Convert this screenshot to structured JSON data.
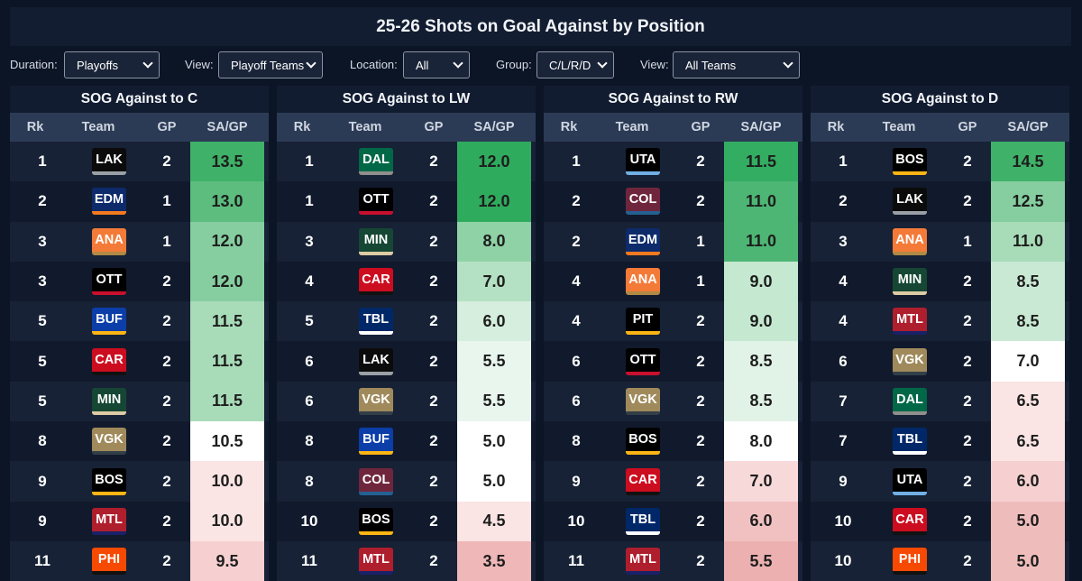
{
  "page": {
    "title": "25-26 Shots on Goal Against by Position"
  },
  "filters": [
    {
      "label": "Duration:",
      "value": "Playoffs"
    },
    {
      "label": "View:",
      "value": "Playoff Teams"
    },
    {
      "label": "Location:",
      "value": "All"
    },
    {
      "label": "Group:",
      "value": "C/L/R/D"
    },
    {
      "label": "View:",
      "value": "All Teams"
    }
  ],
  "columns": {
    "rk": "Rk",
    "team": "Team",
    "gp": "GP",
    "sa": "SA/GP"
  },
  "team_colors": {
    "LAK": {
      "bg": "#0b0b0b",
      "stripe": "#9aa0a6"
    },
    "EDM": {
      "bg": "#0d2a6b",
      "stripe": "#f47a20"
    },
    "ANA": {
      "bg": "#f47a38",
      "stripe": "#b08a45"
    },
    "OTT": {
      "bg": "#000000",
      "stripe": "#c8102e"
    },
    "BUF": {
      "bg": "#0b3ea8",
      "stripe": "#fcb514"
    },
    "CAR": {
      "bg": "#cc0d1f",
      "stripe": "#111111"
    },
    "MIN": {
      "bg": "#154734",
      "stripe": "#ddcba4"
    },
    "VGK": {
      "bg": "#a08a5c",
      "stripe": "#333f48"
    },
    "BOS": {
      "bg": "#000000",
      "stripe": "#fcb514"
    },
    "MTL": {
      "bg": "#af1e2d",
      "stripe": "#192168"
    },
    "PHI": {
      "bg": "#f74902",
      "stripe": "#111111"
    },
    "DAL": {
      "bg": "#006847",
      "stripe": "#8f8f8c"
    },
    "TBL": {
      "bg": "#002868",
      "stripe": "#ffffff"
    },
    "COL": {
      "bg": "#6f263d",
      "stripe": "#236192"
    },
    "UTA": {
      "bg": "#000000",
      "stripe": "#71afe5"
    },
    "PIT": {
      "bg": "#000000",
      "stripe": "#fcb514"
    }
  },
  "panels": [
    {
      "title": "SOG Against to C",
      "rows": [
        {
          "rk": "1",
          "team": "LAK",
          "gp": "2",
          "sa": "13.5"
        },
        {
          "rk": "2",
          "team": "EDM",
          "gp": "1",
          "sa": "13.0"
        },
        {
          "rk": "3",
          "team": "ANA",
          "gp": "1",
          "sa": "12.0"
        },
        {
          "rk": "3",
          "team": "OTT",
          "gp": "2",
          "sa": "12.0"
        },
        {
          "rk": "5",
          "team": "BUF",
          "gp": "2",
          "sa": "11.5"
        },
        {
          "rk": "5",
          "team": "CAR",
          "gp": "2",
          "sa": "11.5"
        },
        {
          "rk": "5",
          "team": "MIN",
          "gp": "2",
          "sa": "11.5"
        },
        {
          "rk": "8",
          "team": "VGK",
          "gp": "2",
          "sa": "10.5"
        },
        {
          "rk": "9",
          "team": "BOS",
          "gp": "2",
          "sa": "10.0"
        },
        {
          "rk": "9",
          "team": "MTL",
          "gp": "2",
          "sa": "10.0"
        },
        {
          "rk": "11",
          "team": "PHI",
          "gp": "2",
          "sa": "9.5"
        }
      ]
    },
    {
      "title": "SOG Against to LW",
      "rows": [
        {
          "rk": "1",
          "team": "DAL",
          "gp": "2",
          "sa": "12.0"
        },
        {
          "rk": "1",
          "team": "OTT",
          "gp": "2",
          "sa": "12.0"
        },
        {
          "rk": "3",
          "team": "MIN",
          "gp": "2",
          "sa": "8.0"
        },
        {
          "rk": "4",
          "team": "CAR",
          "gp": "2",
          "sa": "7.0"
        },
        {
          "rk": "5",
          "team": "TBL",
          "gp": "2",
          "sa": "6.0"
        },
        {
          "rk": "6",
          "team": "LAK",
          "gp": "2",
          "sa": "5.5"
        },
        {
          "rk": "6",
          "team": "VGK",
          "gp": "2",
          "sa": "5.5"
        },
        {
          "rk": "8",
          "team": "BUF",
          "gp": "2",
          "sa": "5.0"
        },
        {
          "rk": "8",
          "team": "COL",
          "gp": "2",
          "sa": "5.0"
        },
        {
          "rk": "10",
          "team": "BOS",
          "gp": "2",
          "sa": "4.5"
        },
        {
          "rk": "11",
          "team": "MTL",
          "gp": "2",
          "sa": "3.5"
        }
      ]
    },
    {
      "title": "SOG Against to RW",
      "rows": [
        {
          "rk": "1",
          "team": "UTA",
          "gp": "2",
          "sa": "11.5"
        },
        {
          "rk": "2",
          "team": "COL",
          "gp": "2",
          "sa": "11.0"
        },
        {
          "rk": "2",
          "team": "EDM",
          "gp": "1",
          "sa": "11.0"
        },
        {
          "rk": "4",
          "team": "ANA",
          "gp": "1",
          "sa": "9.0"
        },
        {
          "rk": "4",
          "team": "PIT",
          "gp": "2",
          "sa": "9.0"
        },
        {
          "rk": "6",
          "team": "OTT",
          "gp": "2",
          "sa": "8.5"
        },
        {
          "rk": "6",
          "team": "VGK",
          "gp": "2",
          "sa": "8.5"
        },
        {
          "rk": "8",
          "team": "BOS",
          "gp": "2",
          "sa": "8.0"
        },
        {
          "rk": "9",
          "team": "CAR",
          "gp": "2",
          "sa": "7.0"
        },
        {
          "rk": "10",
          "team": "TBL",
          "gp": "2",
          "sa": "6.0"
        },
        {
          "rk": "11",
          "team": "MTL",
          "gp": "2",
          "sa": "5.5"
        }
      ]
    },
    {
      "title": "SOG Against to D",
      "rows": [
        {
          "rk": "1",
          "team": "BOS",
          "gp": "2",
          "sa": "14.5"
        },
        {
          "rk": "2",
          "team": "LAK",
          "gp": "2",
          "sa": "12.5"
        },
        {
          "rk": "3",
          "team": "ANA",
          "gp": "1",
          "sa": "11.0"
        },
        {
          "rk": "4",
          "team": "MIN",
          "gp": "2",
          "sa": "8.5"
        },
        {
          "rk": "4",
          "team": "MTL",
          "gp": "2",
          "sa": "8.5"
        },
        {
          "rk": "6",
          "team": "VGK",
          "gp": "2",
          "sa": "7.0"
        },
        {
          "rk": "7",
          "team": "DAL",
          "gp": "2",
          "sa": "6.5"
        },
        {
          "rk": "7",
          "team": "TBL",
          "gp": "2",
          "sa": "6.5"
        },
        {
          "rk": "9",
          "team": "UTA",
          "gp": "2",
          "sa": "6.0"
        },
        {
          "rk": "10",
          "team": "CAR",
          "gp": "2",
          "sa": "5.0"
        },
        {
          "rk": "10",
          "team": "PHI",
          "gp": "2",
          "sa": "5.0"
        }
      ]
    }
  ],
  "heat_colors": {
    "panel0": [
      "#3fb168",
      "#5cbd7e",
      "#86cea0",
      "#86cea0",
      "#a8dcb9",
      "#a8dcb9",
      "#a8dcb9",
      "#ffffff",
      "#fbe4e4",
      "#fbe4e4",
      "#f6d0d0"
    ],
    "panel1": [
      "#2fab5e",
      "#2fab5e",
      "#8fd2a6",
      "#b4e1c3",
      "#d5eedd",
      "#e9f6ee",
      "#e9f6ee",
      "#ffffff",
      "#ffffff",
      "#fbe4e4",
      "#efb7b7"
    ],
    "panel2": [
      "#33ad62",
      "#4db674",
      "#4db674",
      "#c5e8d1",
      "#c5e8d1",
      "#e1f3e7",
      "#e1f3e7",
      "#ffffff",
      "#f8d9d9",
      "#f1c1c1",
      "#ecb0b0"
    ],
    "panel3": [
      "#3fb168",
      "#86cea0",
      "#a8dcb9",
      "#c9e9d4",
      "#c9e9d4",
      "#ffffff",
      "#fbe4e4",
      "#fbe4e4",
      "#f6d0d0",
      "#efbcbc",
      "#efbcbc"
    ]
  }
}
